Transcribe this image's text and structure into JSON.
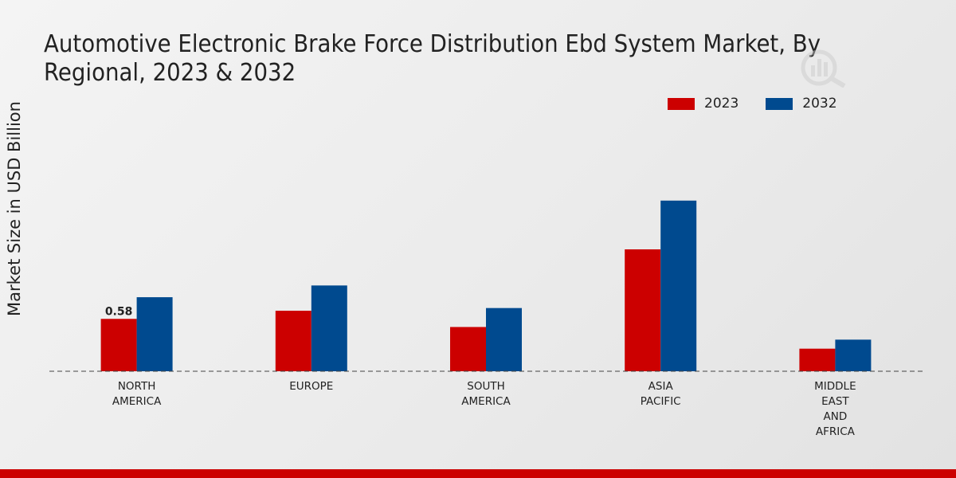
{
  "chart_data": {
    "type": "bar",
    "title": "Automotive Electronic Brake Force Distribution Ebd System Market, By Regional, 2023 & 2032",
    "xlabel": "",
    "ylabel": "Market Size in USD Billion",
    "categories": [
      "NORTH\nAMERICA",
      "EUROPE",
      "SOUTH\nAMERICA",
      "ASIA\nPACIFIC",
      "MIDDLE\nEAST\nAND\nAFRICA"
    ],
    "series": [
      {
        "name": "2023",
        "color": "#cc0000",
        "values": [
          0.58,
          0.67,
          0.49,
          1.35,
          0.25
        ]
      },
      {
        "name": "2032",
        "color": "#004a8f",
        "values": [
          0.82,
          0.95,
          0.7,
          1.89,
          0.35
        ]
      }
    ],
    "data_labels": [
      {
        "series": "2023",
        "category_index": 0,
        "text": "0.58"
      }
    ],
    "ylim": [
      0,
      2.7
    ],
    "legend_position": "top-right",
    "grid": false
  }
}
